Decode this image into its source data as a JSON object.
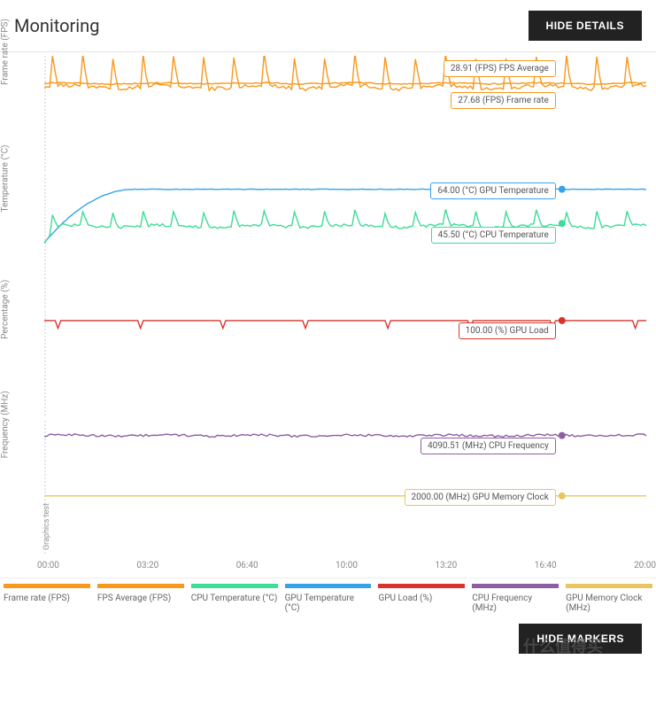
{
  "header": {
    "title": "Monitoring",
    "hide_details": "HIDE DETAILS",
    "hide_markers": "HIDE MARKERS"
  },
  "colors": {
    "frame_rate": "#f8981d",
    "fps_average": "#f8981d",
    "cpu_temp": "#3ddc97",
    "gpu_temp": "#36a2eb",
    "gpu_load": "#d9342b",
    "cpu_freq": "#8e5ea2",
    "gpu_mem": "#e8c560",
    "grid": "#e8e8e8",
    "axis": "#888888",
    "dashed": "#cccccc"
  },
  "x_axis": {
    "ticks": [
      "00:00",
      "03:20",
      "06:40",
      "10:00",
      "13:20",
      "16:40",
      "20:00"
    ]
  },
  "charts": [
    {
      "id": "fps",
      "ylabel": "Frame rate (FPS)",
      "ylim": [
        0,
        38
      ],
      "yticks": [
        10,
        20,
        30
      ],
      "height": 130,
      "series": [
        {
          "key": "fps_avg",
          "color": "#f8981d",
          "base": 28.9,
          "amp": 0.6,
          "noise": 0.4,
          "spikes": false
        },
        {
          "key": "frame_rate",
          "color": "#f8981d",
          "base": 27.7,
          "amp": 2,
          "noise": 1.2,
          "spikes": true,
          "spike_h": 10
        }
      ],
      "callouts": [
        {
          "text": "28.91 (FPS) FPS Average",
          "color": "#f8981d",
          "y": 28.91,
          "offset_y": -26
        },
        {
          "text": "27.68 (FPS) Frame rate",
          "color": "#f8981d",
          "y": 27.68,
          "offset_y": 6
        }
      ]
    },
    {
      "id": "temp",
      "ylabel": "Temperature (°C)",
      "ylim": [
        0,
        72
      ],
      "yticks": [
        20,
        40,
        60
      ],
      "height": 150,
      "series": [
        {
          "key": "gpu_temp",
          "color": "#36a2eb",
          "ramp_from": 35,
          "ramp_to": 64,
          "ramp_frac": 0.15,
          "noise": 0.3
        },
        {
          "key": "cpu_temp",
          "color": "#3ddc97",
          "base": 44,
          "amp": 2,
          "noise": 1.5,
          "spikes": true,
          "spike_h": 8,
          "start": 35
        }
      ],
      "callouts": [
        {
          "text": "64.00 (°C) GPU Temperature",
          "color": "#36a2eb",
          "y": 64,
          "offset_y": -8,
          "dot": true
        },
        {
          "text": "45.50 (°C) CPU Temperature",
          "color": "#3ddc97",
          "y": 45.5,
          "offset_y": 4,
          "dot": true
        }
      ]
    },
    {
      "id": "pct",
      "ylabel": "Percentage (%)",
      "ylim": [
        0,
        110
      ],
      "yticks": [
        20,
        40,
        60,
        80,
        100
      ],
      "height": 120,
      "series": [
        {
          "key": "gpu_load",
          "color": "#d9342b",
          "base": 100,
          "amp": 0,
          "noise": 0,
          "dips": true,
          "dip_h": 8
        }
      ],
      "callouts": [
        {
          "text": "100.00 (%) GPU Load",
          "color": "#d9342b",
          "y": 100,
          "offset_y": 2,
          "dot": true
        }
      ]
    },
    {
      "id": "freq",
      "ylabel": "Frequency (MHz)",
      "ylim": [
        0,
        4600
      ],
      "yticks": [
        1000,
        2000,
        3000,
        4000
      ],
      "height": 150,
      "graphics_test": "Graphics test",
      "series": [
        {
          "key": "cpu_freq",
          "color": "#8e5ea2",
          "base": 4090,
          "amp": 60,
          "noise": 80
        },
        {
          "key": "gpu_mem",
          "color": "#e8c560",
          "base": 2000,
          "amp": 0,
          "noise": 2
        }
      ],
      "callouts": [
        {
          "text": "4090.51 (MHz) CPU Frequency",
          "color": "#8e5ea2",
          "y": 4090,
          "offset_y": 2,
          "dot": true
        },
        {
          "text": "2000.00 (MHz) GPU Memory Clock",
          "color": "#e8c560",
          "y": 2000,
          "offset_y": -8,
          "dot": true
        }
      ]
    }
  ],
  "legend": [
    {
      "label": "Frame rate (FPS)",
      "color": "#f8981d"
    },
    {
      "label": "FPS Average (FPS)",
      "color": "#f8981d"
    },
    {
      "label": "CPU Temperature (°C)",
      "color": "#3ddc97"
    },
    {
      "label": "GPU Temperature (°C)",
      "color": "#36a2eb"
    },
    {
      "label": "GPU Load (%)",
      "color": "#d9342b"
    },
    {
      "label": "CPU Frequency (MHz)",
      "color": "#8e5ea2"
    },
    {
      "label": "GPU Memory Clock (MHz)",
      "color": "#e8c560"
    }
  ],
  "watermark": "什么值得买"
}
